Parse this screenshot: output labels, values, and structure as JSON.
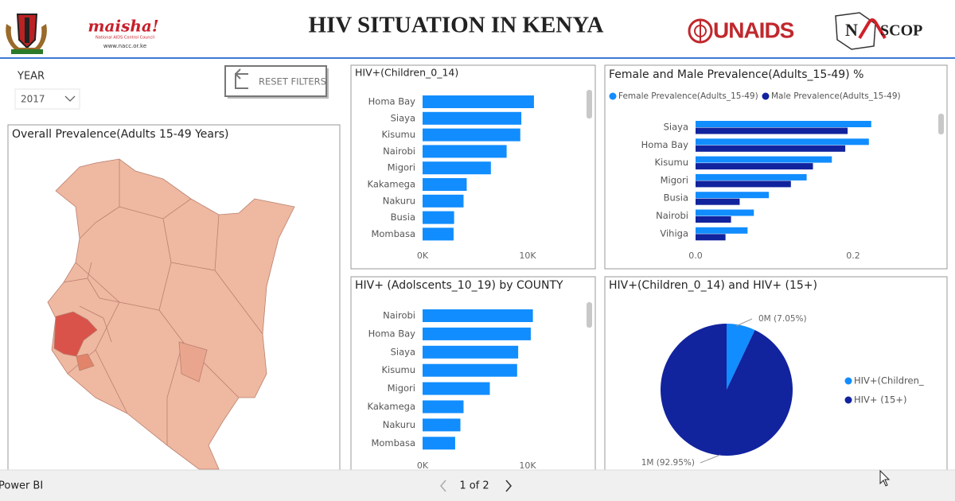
{
  "header": {
    "title": "HIV SITUATION IN KENYA",
    "nacc_logo": "maisha!",
    "nacc_name": "National AIDS Control Council",
    "nacc_url": "www.nacc.or.ke",
    "unaids_logo": "UNAIDS",
    "nascop_logo_left": "N",
    "nascop_logo_right": "SCOP"
  },
  "filters": {
    "year_label": "YEAR",
    "year_value": "2017",
    "reset_button": "RESET FILTERS"
  },
  "map": {
    "title": "Overall Prevalence(Adults 15-49 Years)"
  },
  "chart_data": [
    {
      "type": "hbar",
      "title": "HIV+(Children_0_14)",
      "categories": [
        "Homa Bay",
        "Siaya",
        "Kisumu",
        "Nairobi",
        "Migori",
        "Kakamega",
        "Nakuru",
        "Busia",
        "Mombasa"
      ],
      "values": [
        10600,
        9400,
        9300,
        8000,
        6500,
        4200,
        3900,
        3000,
        2950
      ],
      "color": "#118dff",
      "xlim": [
        0,
        15000
      ],
      "xticks": [
        {
          "value": 0,
          "label": "0K"
        },
        {
          "value": 10000,
          "label": "10K"
        }
      ]
    },
    {
      "type": "grouped_hbar",
      "title": "Female and Male Prevalence(Adults_15-49) %",
      "categories": [
        "Siaya",
        "Homa Bay",
        "Kisumu",
        "Migori",
        "Busia",
        "Nairobi",
        "Vihiga"
      ],
      "series": [
        {
          "name": "Female Prevalence(Adults_15-49)",
          "color": "#118dff",
          "values": [
            0.223,
            0.22,
            0.173,
            0.141,
            0.093,
            0.074,
            0.066
          ]
        },
        {
          "name": "Male Prevalence(Adults_15-49)",
          "color": "#12239e",
          "values": [
            0.193,
            0.19,
            0.149,
            0.121,
            0.056,
            0.045,
            0.038
          ]
        }
      ],
      "xlim": [
        0,
        0.3
      ],
      "xticks": [
        {
          "value": 0,
          "label": "0.0"
        },
        0.2
      ]
    },
    {
      "type": "hbar",
      "title": "HIV+ (Adolscents_10_19) by COUNTY",
      "categories": [
        "Nairobi",
        "Homa Bay",
        "Siaya",
        "Kisumu",
        "Migori",
        "Kakamega",
        "Nakuru",
        "Mombasa"
      ],
      "values": [
        10500,
        10300,
        9100,
        9000,
        6400,
        3900,
        3600,
        3100
      ],
      "color": "#118dff",
      "xlim": [
        0,
        15000
      ],
      "xticks": [
        {
          "value": 0,
          "label": "0K"
        },
        {
          "value": 10000,
          "label": "10K"
        }
      ]
    },
    {
      "type": "pie",
      "title": "HIV+(Children_0_14) and HIV+ (15+)",
      "categories": [
        "HIV+(Children_",
        "HIV+ (15+)"
      ],
      "values": [
        7.05,
        92.95
      ],
      "value_labels": [
        "0M (7.05%)",
        "1M (92.95%)"
      ],
      "colors": [
        "#118dff",
        "#12239e"
      ]
    }
  ],
  "footer": {
    "app_name": "Power BI",
    "page_indicator": "1 of 2"
  }
}
